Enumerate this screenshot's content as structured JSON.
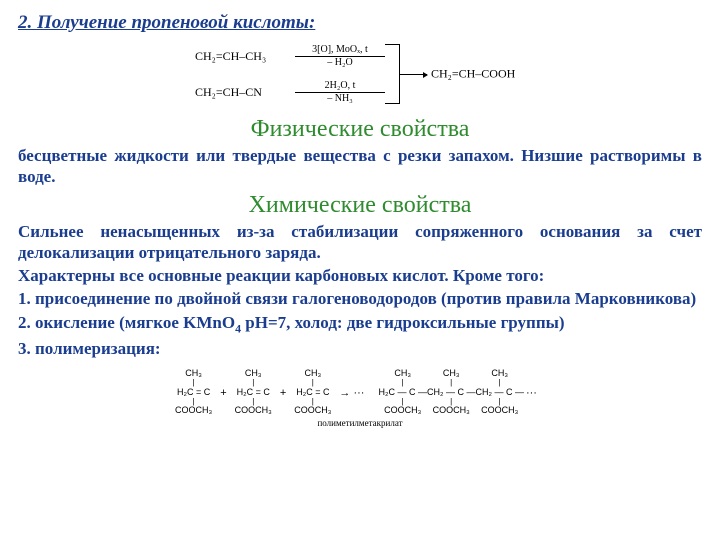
{
  "title": "2. Получение пропеновой кислоты:",
  "scheme1": {
    "reactant_a": "CH₂=CH–CH₃",
    "cond_a_top": "3[O], MoOₓ, t",
    "cond_a_bot": "– H₂O",
    "reactant_b": "CH₂=CH–CN",
    "cond_b_top": "2H₂O, t",
    "cond_b_bot": "– NH₃",
    "product": "CH₂=CH–COOH"
  },
  "sections": {
    "phys_h": "Физические свойства",
    "phys_color": "#2e8b2e",
    "phys_body": "бесцветные жидкости или твердые вещества с резки запахом. Низшие растворимы в воде.",
    "chem_h": "Химические свойства",
    "chem_color": "#2e8b2e",
    "chem_p1": "Сильнее ненасыщенных из-за стабилизации сопряженного основания за счет делокализации отрицательного заряда.",
    "chem_p2": "Характерны все основные реакции карбоновых кислот. Кроме того:",
    "chem_l1": "1. присоединение по двойной связи галогеноводородов (против правила Марковникова)",
    "chem_l2_a": "2. окисление (мягкое KMnO",
    "chem_l2_sub": "4",
    "chem_l2_b": " pH=7, холод: две гидроксильные группы)",
    "chem_l3": "3. полимеризация:"
  },
  "body_color": "#1a3d8f",
  "scheme2": {
    "monomer_top": "CH₃",
    "monomer_mid": "H₂C = C",
    "monomer_bot": "COOCH₃",
    "plus": "+",
    "arrow": "→ ···",
    "poly_top": "CH₃",
    "poly_mid_a": "H₂C — C —",
    "poly_mid_b": "CH₂ — C —",
    "poly_bot": "COOCH₃",
    "dots": "···",
    "label": "полиметилметакрилат"
  }
}
